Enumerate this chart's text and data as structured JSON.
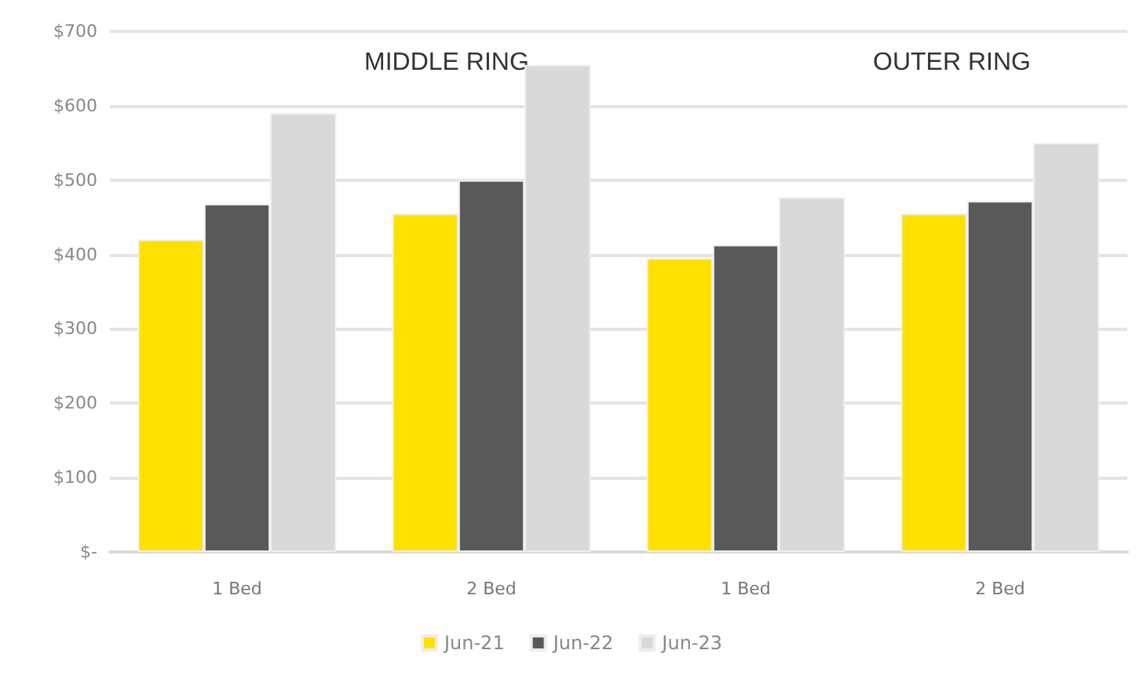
{
  "chart_data": {
    "type": "bar",
    "categories": [
      "1 Bed",
      "2 Bed",
      "1 Bed",
      "2 Bed"
    ],
    "series": [
      {
        "name": "Jun-21",
        "color": "#ffe100",
        "values": [
          420,
          455,
          395,
          455
        ]
      },
      {
        "name": "Jun-22",
        "color": "#595959",
        "values": [
          468,
          500,
          413,
          472
        ]
      },
      {
        "name": "Jun-23",
        "color": "#d9d9d9",
        "values": [
          590,
          655,
          477,
          550
        ]
      }
    ],
    "ylim": [
      0,
      700
    ],
    "yticks": [
      {
        "value": 0,
        "label": "$-"
      },
      {
        "value": 100,
        "label": "$100"
      },
      {
        "value": 200,
        "label": "$200"
      },
      {
        "value": 300,
        "label": "$300"
      },
      {
        "value": 400,
        "label": "$400"
      },
      {
        "value": 500,
        "label": "$500"
      },
      {
        "value": 600,
        "label": "$600"
      },
      {
        "value": 700,
        "label": "$700"
      }
    ],
    "annotations": [
      "MIDDLE RING",
      "OUTER RING"
    ],
    "grid": "y",
    "legend": "bottom"
  }
}
